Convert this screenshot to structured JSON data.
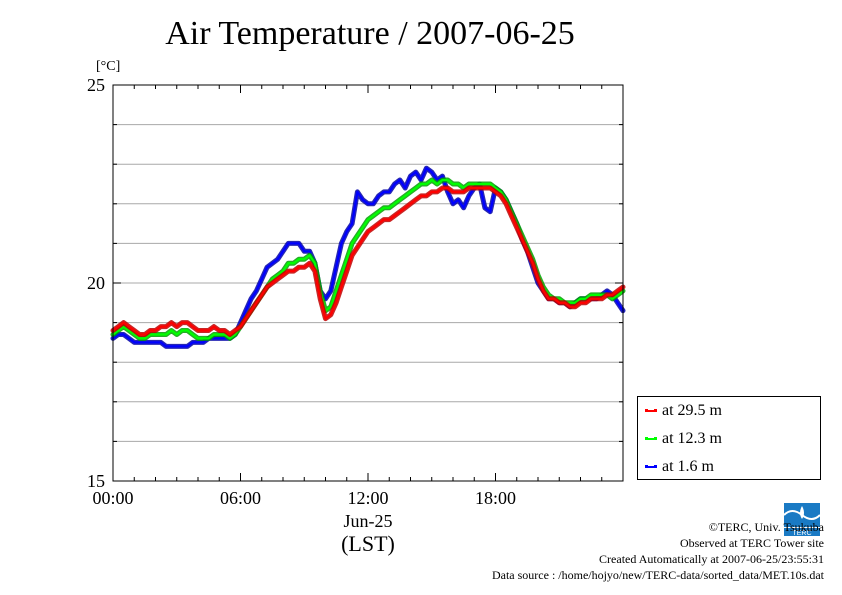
{
  "chart_data": {
    "type": "line",
    "title": "Air Temperature / 2007-06-25",
    "ylabel": "[°C]",
    "xlabel_date": "Jun-25",
    "xlabel_zone": "(LST)",
    "ylim": [
      15,
      25
    ],
    "xlim_hours": [
      0,
      24
    ],
    "yticks": [
      "25",
      "20",
      "15"
    ],
    "xticks": [
      "00:00",
      "06:00",
      "12:00",
      "18:00"
    ],
    "grid": true,
    "legend_position": "bottom-right, outside plot",
    "series": [
      {
        "name": "at 29.5 m",
        "color": "#ff0000",
        "x": [
          0,
          0.25,
          0.5,
          0.75,
          1,
          1.25,
          1.5,
          1.75,
          2,
          2.25,
          2.5,
          2.75,
          3,
          3.25,
          3.5,
          3.75,
          4,
          4.25,
          4.5,
          4.75,
          5,
          5.25,
          5.5,
          5.75,
          6,
          6.25,
          6.5,
          6.75,
          7,
          7.25,
          7.5,
          7.75,
          8,
          8.25,
          8.5,
          8.75,
          9,
          9.25,
          9.5,
          9.75,
          10,
          10.25,
          10.5,
          10.75,
          11,
          11.25,
          11.5,
          11.75,
          12,
          12.25,
          12.5,
          12.75,
          13,
          13.25,
          13.5,
          13.75,
          14,
          14.25,
          14.5,
          14.75,
          15,
          15.25,
          15.5,
          15.75,
          16,
          16.25,
          16.5,
          16.75,
          17,
          17.25,
          17.5,
          17.75,
          18,
          18.25,
          18.5,
          18.75,
          19,
          19.25,
          19.5,
          19.75,
          20,
          20.25,
          20.5,
          20.75,
          21,
          21.25,
          21.5,
          21.75,
          22,
          22.25,
          22.5,
          22.75,
          23,
          23.25,
          23.5,
          23.75,
          24
        ],
        "values": [
          18.8,
          18.9,
          19.0,
          18.9,
          18.8,
          18.7,
          18.7,
          18.8,
          18.8,
          18.9,
          18.9,
          19.0,
          18.9,
          19.0,
          19.0,
          18.9,
          18.8,
          18.8,
          18.8,
          18.9,
          18.8,
          18.8,
          18.7,
          18.8,
          18.9,
          19.1,
          19.3,
          19.5,
          19.7,
          19.9,
          20.0,
          20.1,
          20.2,
          20.3,
          20.3,
          20.4,
          20.4,
          20.5,
          20.3,
          19.6,
          19.1,
          19.2,
          19.5,
          19.9,
          20.3,
          20.7,
          20.9,
          21.1,
          21.3,
          21.4,
          21.5,
          21.6,
          21.6,
          21.7,
          21.8,
          21.9,
          22.0,
          22.1,
          22.2,
          22.2,
          22.3,
          22.3,
          22.4,
          22.4,
          22.3,
          22.3,
          22.3,
          22.4,
          22.4,
          22.4,
          22.4,
          22.4,
          22.3,
          22.2,
          22.0,
          21.7,
          21.4,
          21.1,
          20.8,
          20.5,
          20.1,
          19.8,
          19.6,
          19.6,
          19.5,
          19.5,
          19.4,
          19.4,
          19.5,
          19.5,
          19.6,
          19.6,
          19.6,
          19.7,
          19.7,
          19.8,
          19.9
        ]
      },
      {
        "name": "at 12.3 m",
        "color": "#00ff00",
        "x": [
          0,
          0.25,
          0.5,
          0.75,
          1,
          1.25,
          1.5,
          1.75,
          2,
          2.25,
          2.5,
          2.75,
          3,
          3.25,
          3.5,
          3.75,
          4,
          4.25,
          4.5,
          4.75,
          5,
          5.25,
          5.5,
          5.75,
          6,
          6.25,
          6.5,
          6.75,
          7,
          7.25,
          7.5,
          7.75,
          8,
          8.25,
          8.5,
          8.75,
          9,
          9.25,
          9.5,
          9.75,
          10,
          10.25,
          10.5,
          10.75,
          11,
          11.25,
          11.5,
          11.75,
          12,
          12.25,
          12.5,
          12.75,
          13,
          13.25,
          13.5,
          13.75,
          14,
          14.25,
          14.5,
          14.75,
          15,
          15.25,
          15.5,
          15.75,
          16,
          16.25,
          16.5,
          16.75,
          17,
          17.25,
          17.5,
          17.75,
          18,
          18.25,
          18.5,
          18.75,
          19,
          19.25,
          19.5,
          19.75,
          20,
          20.25,
          20.5,
          20.75,
          21,
          21.25,
          21.5,
          21.75,
          22,
          22.25,
          22.5,
          22.75,
          23,
          23.25,
          23.5,
          23.75,
          24
        ],
        "values": [
          18.7,
          18.8,
          18.9,
          18.8,
          18.7,
          18.6,
          18.6,
          18.7,
          18.7,
          18.7,
          18.7,
          18.8,
          18.7,
          18.8,
          18.8,
          18.7,
          18.6,
          18.6,
          18.6,
          18.7,
          18.7,
          18.7,
          18.6,
          18.7,
          18.9,
          19.1,
          19.3,
          19.5,
          19.7,
          19.9,
          20.1,
          20.2,
          20.3,
          20.5,
          20.5,
          20.6,
          20.6,
          20.7,
          20.5,
          19.8,
          19.3,
          19.4,
          19.8,
          20.2,
          20.6,
          21.0,
          21.2,
          21.4,
          21.6,
          21.7,
          21.8,
          21.9,
          21.9,
          22.0,
          22.1,
          22.2,
          22.3,
          22.4,
          22.5,
          22.5,
          22.6,
          22.5,
          22.6,
          22.6,
          22.5,
          22.5,
          22.4,
          22.5,
          22.5,
          22.5,
          22.5,
          22.5,
          22.4,
          22.3,
          22.1,
          21.8,
          21.5,
          21.2,
          20.9,
          20.6,
          20.2,
          19.9,
          19.7,
          19.6,
          19.6,
          19.5,
          19.5,
          19.5,
          19.6,
          19.6,
          19.7,
          19.7,
          19.7,
          19.7,
          19.6,
          19.7,
          19.8
        ]
      },
      {
        "name": "at 1.6 m",
        "color": "#0000ff",
        "x": [
          0,
          0.25,
          0.5,
          0.75,
          1,
          1.25,
          1.5,
          1.75,
          2,
          2.25,
          2.5,
          2.75,
          3,
          3.25,
          3.5,
          3.75,
          4,
          4.25,
          4.5,
          4.75,
          5,
          5.25,
          5.5,
          5.75,
          6,
          6.25,
          6.5,
          6.75,
          7,
          7.25,
          7.5,
          7.75,
          8,
          8.25,
          8.5,
          8.75,
          9,
          9.25,
          9.5,
          9.75,
          10,
          10.25,
          10.5,
          10.75,
          11,
          11.25,
          11.5,
          11.75,
          12,
          12.25,
          12.5,
          12.75,
          13,
          13.25,
          13.5,
          13.75,
          14,
          14.25,
          14.5,
          14.75,
          15,
          15.25,
          15.5,
          15.75,
          16,
          16.25,
          16.5,
          16.75,
          17,
          17.25,
          17.5,
          17.75,
          18,
          18.25,
          18.5,
          18.75,
          19,
          19.25,
          19.5,
          19.75,
          20,
          20.25,
          20.5,
          20.75,
          21,
          21.25,
          21.5,
          21.75,
          22,
          22.25,
          22.5,
          22.75,
          23,
          23.25,
          23.5,
          23.75,
          24
        ],
        "values": [
          18.6,
          18.7,
          18.7,
          18.6,
          18.5,
          18.5,
          18.5,
          18.5,
          18.5,
          18.5,
          18.4,
          18.4,
          18.4,
          18.4,
          18.4,
          18.5,
          18.5,
          18.5,
          18.6,
          18.6,
          18.6,
          18.6,
          18.6,
          18.7,
          19.0,
          19.3,
          19.6,
          19.8,
          20.1,
          20.4,
          20.5,
          20.6,
          20.8,
          21.0,
          21.0,
          21.0,
          20.8,
          20.8,
          20.5,
          19.8,
          19.6,
          19.8,
          20.4,
          21.0,
          21.3,
          21.5,
          22.3,
          22.1,
          22.0,
          22.0,
          22.2,
          22.3,
          22.3,
          22.5,
          22.6,
          22.4,
          22.7,
          22.8,
          22.6,
          22.9,
          22.8,
          22.6,
          22.7,
          22.3,
          22.0,
          22.1,
          21.9,
          22.2,
          22.4,
          22.5,
          21.9,
          21.8,
          22.4,
          22.3,
          22.1,
          21.8,
          21.5,
          21.1,
          20.8,
          20.4,
          20.0,
          19.8,
          19.6,
          19.6,
          19.5,
          19.5,
          19.4,
          19.5,
          19.6,
          19.6,
          19.6,
          19.6,
          19.7,
          19.8,
          19.7,
          19.5,
          19.3
        ]
      }
    ]
  },
  "credits": {
    "copyright": "©TERC, Univ. Tsukuba",
    "observed": "Observed at TERC Tower site",
    "created": "Created Automatically at 2007-06-25/23:55:31",
    "source": "Data source : /home/hojyo/new/TERC-data/sorted_data/MET.10s.dat",
    "logo_text": "TERC"
  }
}
